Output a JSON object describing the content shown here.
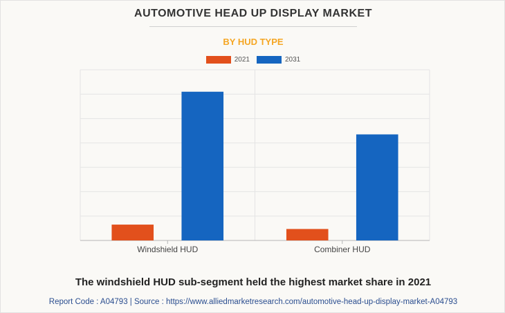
{
  "header": {
    "title": "AUTOMOTIVE HEAD UP DISPLAY MARKET",
    "subtitle": "BY HUD TYPE"
  },
  "colors": {
    "series_2021": "#e2501c",
    "series_2031": "#1565c0",
    "subtitle": "#f5a623",
    "grid": "#e4e4e4"
  },
  "chart_data": {
    "type": "bar",
    "categories": [
      "Windshield HUD",
      "Combiner HUD"
    ],
    "series": [
      {
        "name": "2021",
        "values": [
          0.65,
          0.47
        ]
      },
      {
        "name": "2031",
        "values": [
          6.1,
          4.35
        ]
      }
    ],
    "ylim": [
      0,
      7
    ],
    "y_tick_labels_shown": false,
    "grid": true,
    "legend": "top-center"
  },
  "footer": {
    "caption": "The windshield HUD sub-segment held the highest market share in 2021",
    "report_line": "Report Code : A04793  |  Source : https://www.alliedmarketresearch.com/automotive-head-up-display-market-A04793"
  }
}
